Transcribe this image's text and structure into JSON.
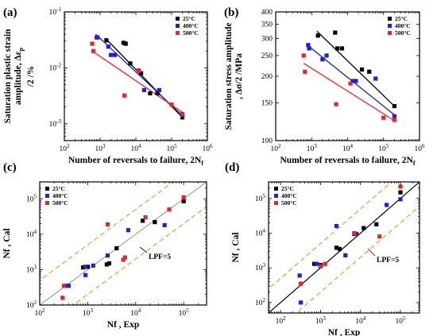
{
  "chart_data": [
    {
      "panel": "(a)",
      "type": "scatter",
      "xlabel": "Number of reversals to  failure, 2N",
      "xlabel_sub": "f",
      "ylabel_lines": [
        "Saturation plastic strain",
        "amplitude, Δε",
        "/2 /%"
      ],
      "ylabel_sub": "p",
      "xscale": "log",
      "yscale": "log",
      "xlim": [
        100,
        1000000
      ],
      "ylim": [
        0.0005,
        0.1
      ],
      "x_ticks": [
        {
          "v": 100,
          "b": "10",
          "e": "2"
        },
        {
          "v": 1000,
          "b": "10",
          "e": "3"
        },
        {
          "v": 10000,
          "b": "10",
          "e": "4"
        },
        {
          "v": 100000,
          "b": "10",
          "e": "5"
        },
        {
          "v": 1000000,
          "b": "10",
          "e": "6"
        }
      ],
      "y_ticks": [
        {
          "v": 0.001,
          "b": "10",
          "e": "-3"
        },
        {
          "v": 0.01,
          "b": "10",
          "e": "-2"
        },
        {
          "v": 0.1,
          "b": "10",
          "e": "-1"
        }
      ],
      "legend": {
        "position": "top-right"
      },
      "series": [
        {
          "name": "25°C",
          "color": "#000000",
          "points": [
            [
              1500,
              0.031
            ],
            [
              4500,
              0.028
            ],
            [
              5200,
              0.027
            ],
            [
              7000,
              0.012
            ],
            [
              14000,
              0.008
            ],
            [
              25000,
              0.0035
            ],
            [
              40000,
              0.0035
            ],
            [
              200000,
              0.0013
            ]
          ],
          "fit": [
            [
              1400,
              0.034
            ],
            [
              200000,
              0.0013
            ]
          ]
        },
        {
          "name": "400°C",
          "color": "#1f1fe0",
          "points": [
            [
              800,
              0.035
            ],
            [
              850,
              0.035
            ],
            [
              1700,
              0.024
            ],
            [
              2000,
              0.017
            ],
            [
              2600,
              0.017
            ],
            [
              17000,
              0.004
            ],
            [
              45000,
              0.004
            ],
            [
              200000,
              0.0014
            ]
          ],
          "fit": [
            [
              750,
              0.04
            ],
            [
              200000,
              0.0014
            ]
          ]
        },
        {
          "name": "500°C",
          "color": "#ee2222",
          "points": [
            [
              600,
              0.027
            ],
            [
              650,
              0.02
            ],
            [
              4800,
              0.0032
            ],
            [
              12000,
              0.009
            ],
            [
              100000,
              0.0022
            ],
            [
              200000,
              0.0015
            ]
          ],
          "fit": [
            [
              600,
              0.02
            ],
            [
              200000,
              0.0016
            ]
          ]
        }
      ]
    },
    {
      "panel": "(b)",
      "type": "scatter",
      "xlabel": "Number of reversals to  failure, 2N",
      "xlabel_sub": "f",
      "ylabel_lines": [
        "Saturation stress amplitude",
        ", Δσ/2 /MPa"
      ],
      "xscale": "log",
      "yscale": "log",
      "xlim": [
        100,
        1000000
      ],
      "ylim": [
        100,
        400
      ],
      "x_ticks": [
        {
          "v": 100,
          "b": "10",
          "e": "2"
        },
        {
          "v": 1000,
          "b": "10",
          "e": "3"
        },
        {
          "v": 10000,
          "b": "10",
          "e": "4"
        },
        {
          "v": 100000,
          "b": "10",
          "e": "5"
        },
        {
          "v": 1000000,
          "b": "10",
          "e": "6"
        }
      ],
      "y_ticks": [
        {
          "v": 100,
          "t": "100"
        },
        {
          "v": 150,
          "t": "150"
        },
        {
          "v": 200,
          "t": "200"
        },
        {
          "v": 250,
          "t": "250"
        },
        {
          "v": 300,
          "t": "300"
        },
        {
          "v": 350,
          "t": "350"
        },
        {
          "v": 400,
          "t": "400"
        }
      ],
      "legend": {
        "position": "top-right"
      },
      "series": [
        {
          "name": "25°C",
          "color": "#000000",
          "points": [
            [
              1500,
              310
            ],
            [
              4500,
              320
            ],
            [
              5200,
              270
            ],
            [
              7000,
              270
            ],
            [
              25000,
              215
            ],
            [
              40000,
              210
            ],
            [
              200000,
              145
            ]
          ],
          "fit": [
            [
              1400,
              325
            ],
            [
              200000,
              145
            ]
          ]
        },
        {
          "name": "400°C",
          "color": "#1f1fe0",
          "points": [
            [
              800,
              280
            ],
            [
              850,
              270
            ],
            [
              2000,
              240
            ],
            [
              2600,
              250
            ],
            [
              14000,
              190
            ],
            [
              17000,
              190
            ],
            [
              60000,
              195
            ],
            [
              200000,
              130
            ]
          ],
          "fit": [
            [
              750,
              280
            ],
            [
              200000,
              132
            ]
          ]
        },
        {
          "name": "500°C",
          "color": "#ee2222",
          "points": [
            [
              600,
              250
            ],
            [
              650,
              210
            ],
            [
              4800,
              148
            ],
            [
              12000,
              185
            ],
            [
              100000,
              128
            ],
            [
              200000,
              125
            ]
          ],
          "fit": [
            [
              600,
              230
            ],
            [
              200000,
              124
            ]
          ]
        }
      ]
    },
    {
      "panel": "(c)",
      "type": "scatter",
      "xlabel": "Nf , Exp",
      "ylabel": "Nf , Cal",
      "xscale": "log",
      "yscale": "log",
      "xlim": [
        100,
        300000
      ],
      "ylim": [
        100,
        300000
      ],
      "x_ticks": [
        {
          "v": 100,
          "b": "10",
          "e": "2"
        },
        {
          "v": 1000,
          "b": "10",
          "e": "3"
        },
        {
          "v": 10000,
          "b": "10",
          "e": "4"
        },
        {
          "v": 100000,
          "b": "10",
          "e": "5"
        }
      ],
      "y_ticks": [
        {
          "v": 100,
          "b": "10",
          "e": "2"
        },
        {
          "v": 1000,
          "b": "10",
          "e": "3"
        },
        {
          "v": 10000,
          "b": "10",
          "e": "4"
        },
        {
          "v": 100000,
          "b": "10",
          "e": "5"
        }
      ],
      "legend": {
        "position": "top-left"
      },
      "annotation": "LPF=5",
      "series": [
        {
          "name": "25°C",
          "color": "#000000",
          "points": [
            [
              800,
              1150
            ],
            [
              1000,
              1200
            ],
            [
              2500,
              1400
            ],
            [
              2800,
              1500
            ],
            [
              4000,
              4000
            ],
            [
              14000,
              24000
            ],
            [
              25000,
              22000
            ],
            [
              100000,
              85000
            ]
          ]
        },
        {
          "name": "400°C",
          "color": "#1f1fe0",
          "points": [
            [
              350,
              350
            ],
            [
              400,
              350
            ],
            [
              900,
              1200
            ],
            [
              1300,
              1300
            ],
            [
              900,
              700
            ],
            [
              2600,
              2500
            ],
            [
              7000,
              13000
            ],
            [
              40000,
              18000
            ]
          ]
        },
        {
          "name": "500°C",
          "color": "#ee2222",
          "points": [
            [
              300,
              160
            ],
            [
              320,
              350
            ],
            [
              2600,
              19000
            ],
            [
              6000,
              2200
            ],
            [
              5500,
              1900
            ],
            [
              16000,
              30000
            ],
            [
              50000,
              50000
            ],
            [
              100000,
              110000
            ]
          ]
        }
      ]
    },
    {
      "panel": "(d)",
      "type": "scatter",
      "xlabel": "Nf , Exp",
      "ylabel": "Nf , Cal",
      "xscale": "log",
      "yscale": "log",
      "xlim": [
        50,
        300000
      ],
      "ylim": [
        50,
        300000
      ],
      "x_ticks": [
        {
          "v": 100,
          "b": "10",
          "e": "2"
        },
        {
          "v": 1000,
          "b": "10",
          "e": "3"
        },
        {
          "v": 10000,
          "b": "10",
          "e": "4"
        },
        {
          "v": 100000,
          "b": "10",
          "e": "5"
        }
      ],
      "y_ticks": [
        {
          "v": 100,
          "b": "10",
          "e": "2"
        },
        {
          "v": 1000,
          "b": "10",
          "e": "3"
        },
        {
          "v": 10000,
          "b": "10",
          "e": "4"
        },
        {
          "v": 100000,
          "b": "10",
          "e": "5"
        }
      ],
      "legend": {
        "position": "top-left"
      },
      "annotation": "LPF=5",
      "series": [
        {
          "name": "25°C",
          "color": "#000000",
          "points": [
            [
              700,
              1300
            ],
            [
              1000,
              1200
            ],
            [
              2500,
              3800
            ],
            [
              3000,
              3500
            ],
            [
              7000,
              9500
            ],
            [
              12000,
              14000
            ],
            [
              25000,
              18000
            ],
            [
              100000,
              150000
            ]
          ]
        },
        {
          "name": "400°C",
          "color": "#1f1fe0",
          "points": [
            [
              300,
              600
            ],
            [
              320,
              100
            ],
            [
              800,
              1300
            ],
            [
              2500,
              16000
            ],
            [
              4200,
              2300
            ],
            [
              45000,
              65000
            ],
            [
              100000,
              95000
            ],
            [
              8000,
              9500
            ]
          ]
        },
        {
          "name": "500°C",
          "color": "#ee2222",
          "points": [
            [
              320,
              350
            ],
            [
              1000,
              1100
            ],
            [
              1300,
              1300
            ],
            [
              7000,
              10000
            ],
            [
              30000,
              8000
            ],
            [
              100000,
              220000
            ]
          ]
        }
      ]
    }
  ]
}
